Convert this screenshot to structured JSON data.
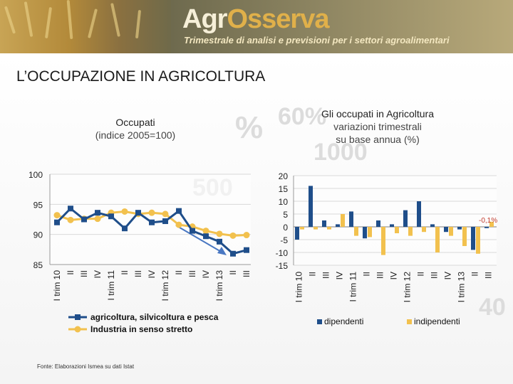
{
  "header": {
    "logo_part1": "Agr",
    "logo_part2": "Osserva",
    "tagline": "Trimestrale di analisi e previsioni per i settori agroalimentari"
  },
  "page_title": "L’OCCUPAZIONE IN AGRICOLTURA",
  "source_note": "Fonte: Elaborazioni Ismea su dati Istat",
  "watermark_texts": [
    "%",
    "60%",
    "500",
    "40",
    "1000"
  ],
  "colors": {
    "series_dark": "#1f4e8a",
    "series_light": "#f2c14e",
    "arrow": "#4a78c2",
    "grid": "#d9d9d9"
  },
  "chart_data": [
    {
      "type": "line",
      "title": "Occupati",
      "subtitle": "(indice 2005=100)",
      "categories": [
        "I trim 10",
        "II",
        "III",
        "IV",
        "I trim 11",
        "II",
        "III",
        "IV",
        "I trim 12",
        "II",
        "III",
        "IV",
        "I trim 13",
        "II",
        "III"
      ],
      "ylim": [
        85,
        100
      ],
      "yticks": [
        "85",
        "90",
        "95",
        "100"
      ],
      "grid": true,
      "legend_position": "bottom",
      "series": [
        {
          "name": "agricoltura, silvicoltura e pesca",
          "values": [
            92.0,
            94.3,
            92.5,
            93.6,
            93.0,
            91.0,
            93.6,
            92.0,
            92.2,
            93.9,
            90.6,
            89.7,
            88.8,
            86.8,
            87.4
          ]
        },
        {
          "name": "Industria in senso stretto",
          "values": [
            93.2,
            92.4,
            92.6,
            92.6,
            93.6,
            93.8,
            93.4,
            93.6,
            93.4,
            91.6,
            91.3,
            90.6,
            90.1,
            89.8,
            89.9
          ]
        }
      ]
    },
    {
      "type": "bar",
      "title": "Gli occupati in Agricoltura",
      "subtitle": "variazioni trimestrali\nsu base annua (%)",
      "categories": [
        "I trim 10",
        "II",
        "III",
        "IV",
        "I trim 11",
        "II",
        "III",
        "IV",
        "I trim 12",
        "II",
        "III",
        "IV",
        "I trim 13",
        "II",
        "III"
      ],
      "ylim": [
        -15,
        20
      ],
      "yticks": [
        "-15",
        "-10",
        "-5",
        "0",
        "5",
        "10",
        "15",
        "20"
      ],
      "grid": true,
      "legend_position": "bottom",
      "annotation": "-0,1%",
      "series": [
        {
          "name": "dipendenti",
          "values": [
            -5.0,
            16.0,
            2.5,
            1.0,
            6.0,
            -4.5,
            2.5,
            1.0,
            6.5,
            10.0,
            1.0,
            -2.0,
            -1.0,
            -9.0,
            -0.5
          ]
        },
        {
          "name": "indipendenti",
          "values": [
            -1.0,
            -1.0,
            -1.0,
            5.0,
            -3.5,
            -4.0,
            -11.0,
            -2.5,
            -3.5,
            -2.0,
            -10.0,
            -3.5,
            -7.5,
            -10.5,
            2.0
          ]
        }
      ]
    }
  ]
}
